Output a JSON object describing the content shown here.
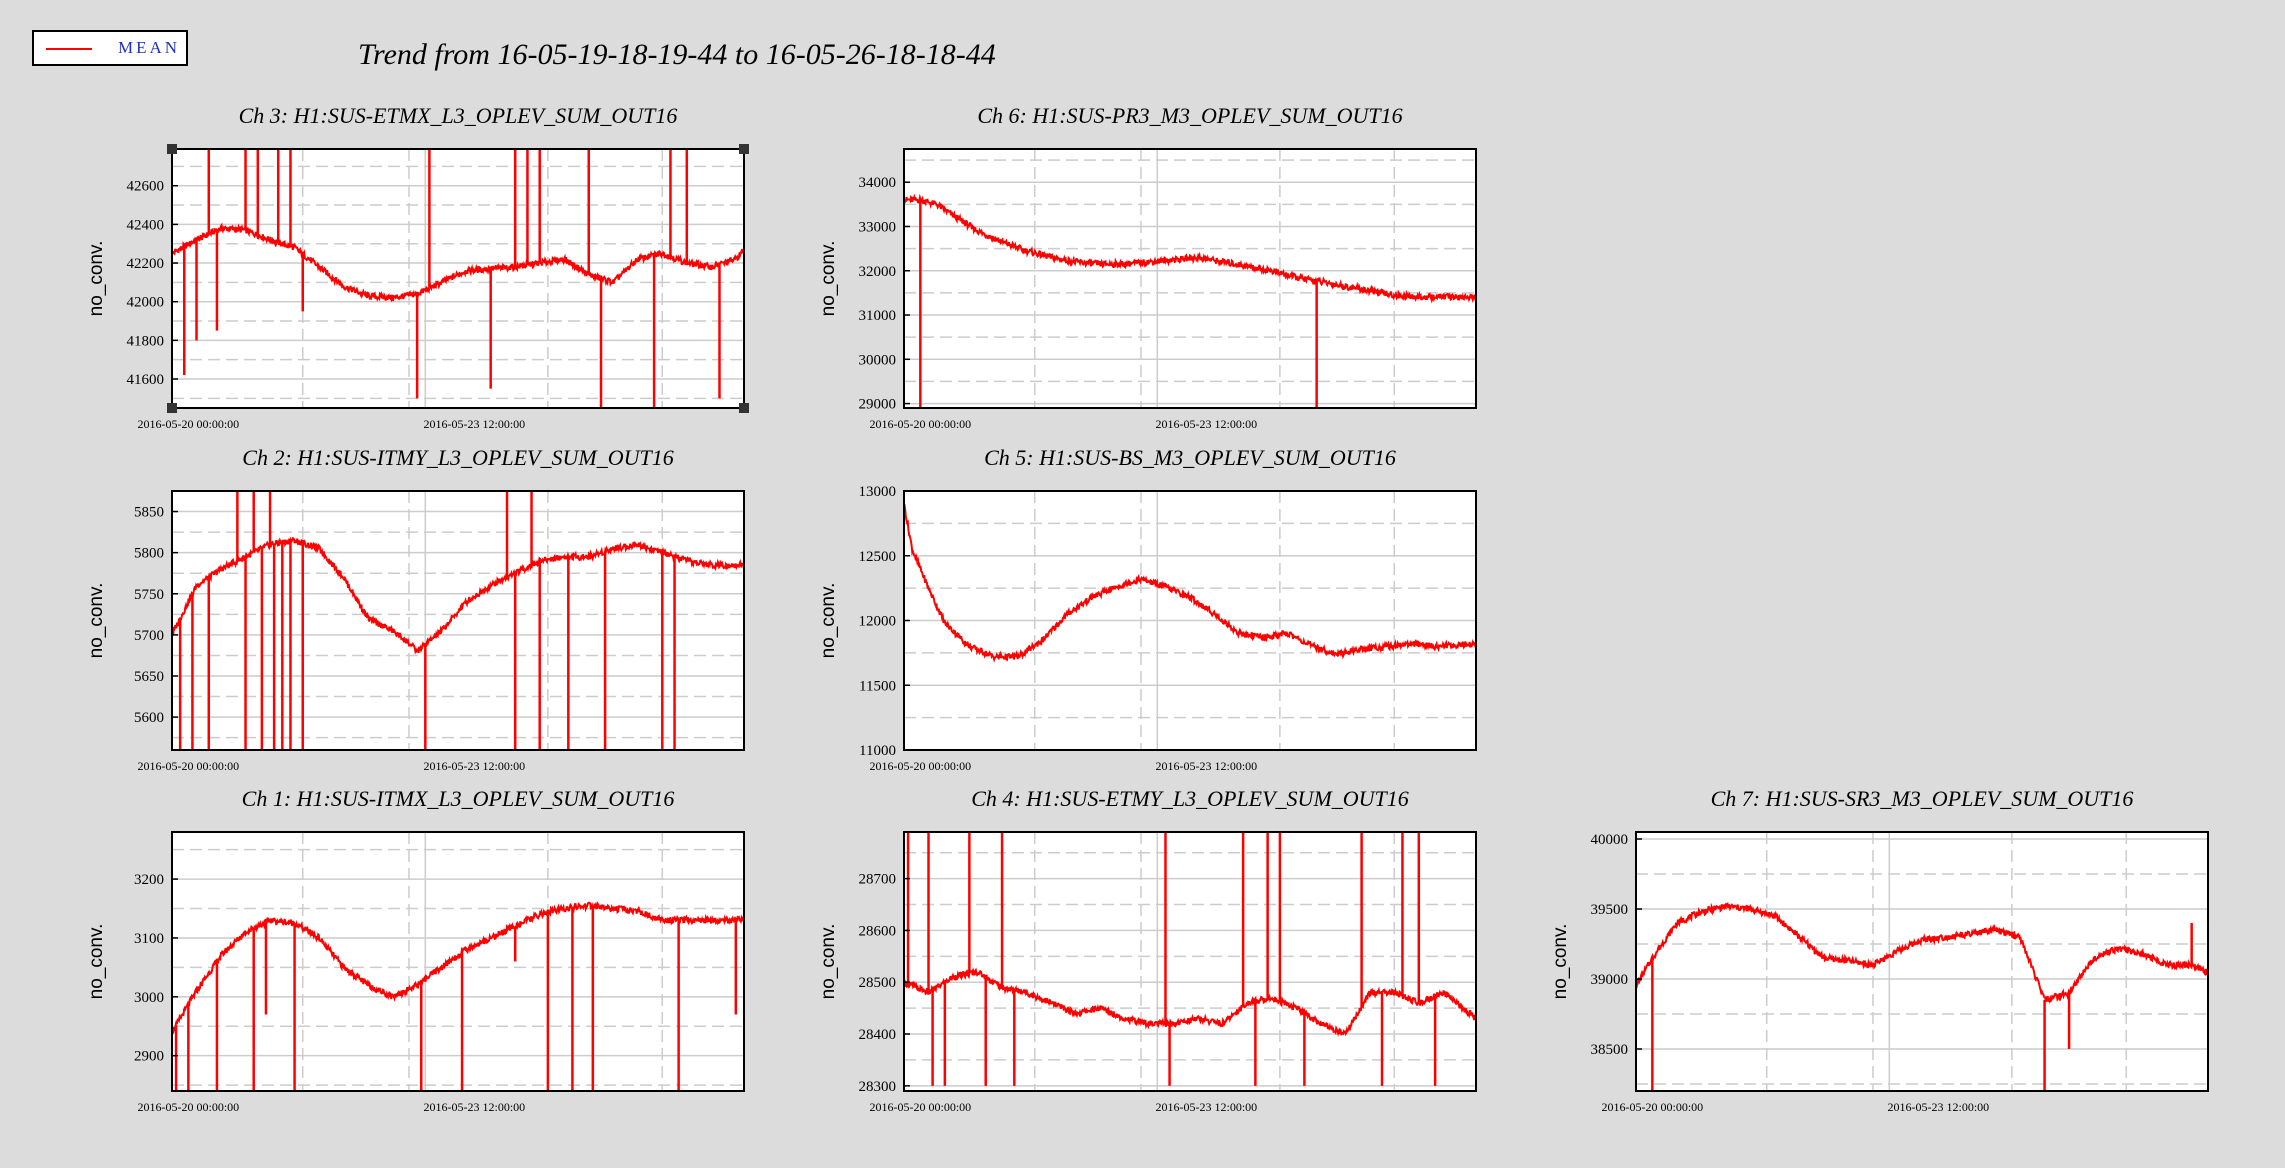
{
  "legend": {
    "label": "MEAN",
    "color": "#ff0000"
  },
  "title": "Trend from 16-05-19-18-19-44 to 16-05-26-18-18-44",
  "chart_data": [
    {
      "type": "line",
      "panel": "r1c1",
      "title": "Ch 3: H1:SUS-ETMX_L3_OPLEV_SUM_OUT16",
      "ylabel": "no_conv.",
      "ylim": [
        41450,
        42790
      ],
      "yticks": [
        41600,
        41800,
        42000,
        42200,
        42400,
        42600
      ],
      "xticks": [
        "2016-05-20 00:00:00",
        "2016-05-23 12:00:00"
      ],
      "series": [
        {
          "color": "#ff0000",
          "x": [
            0,
            0.3,
            0.6,
            0.9,
            1.2,
            1.5,
            1.8,
            2.1,
            2.4,
            2.7,
            3.0,
            3.3,
            3.6,
            3.9,
            4.2,
            4.5,
            4.8,
            5.1,
            5.4,
            5.7,
            6.0,
            6.3,
            6.6,
            6.9,
            7.0
          ],
          "values": [
            42250,
            42320,
            42380,
            42370,
            42320,
            42280,
            42180,
            42080,
            42030,
            42020,
            42040,
            42100,
            42160,
            42170,
            42180,
            42200,
            42220,
            42140,
            42100,
            42220,
            42250,
            42200,
            42180,
            42220,
            42270
          ]
        }
      ],
      "spikes": [
        {
          "x": 0.15,
          "to": 41620
        },
        {
          "x": 0.3,
          "to": 41800
        },
        {
          "x": 0.45,
          "to": 42790
        },
        {
          "x": 0.55,
          "to": 41850
        },
        {
          "x": 0.9,
          "to": 42790
        },
        {
          "x": 1.05,
          "to": 42790
        },
        {
          "x": 1.3,
          "to": 42790
        },
        {
          "x": 1.45,
          "to": 42790
        },
        {
          "x": 1.6,
          "to": 41950
        },
        {
          "x": 3.0,
          "to": 41500
        },
        {
          "x": 3.15,
          "to": 42790
        },
        {
          "x": 3.9,
          "to": 41550
        },
        {
          "x": 4.2,
          "to": 42790
        },
        {
          "x": 4.35,
          "to": 42790
        },
        {
          "x": 4.5,
          "to": 42790
        },
        {
          "x": 5.1,
          "to": 42790
        },
        {
          "x": 5.25,
          "to": 41450
        },
        {
          "x": 5.9,
          "to": 41450
        },
        {
          "x": 6.1,
          "to": 42790
        },
        {
          "x": 6.3,
          "to": 42790
        },
        {
          "x": 6.7,
          "to": 41500
        }
      ]
    },
    {
      "type": "line",
      "panel": "r1c2",
      "title": "Ch 6: H1:SUS-PR3_M3_OPLEV_SUM_OUT16",
      "ylabel": "no_conv.",
      "ylim": [
        28900,
        34750
      ],
      "yticks": [
        29000,
        30000,
        31000,
        32000,
        33000,
        34000
      ],
      "xticks": [
        "2016-05-20 00:00:00",
        "2016-05-23 12:00:00"
      ],
      "series": [
        {
          "color": "#ff0000",
          "x": [
            0,
            0.2,
            0.4,
            0.6,
            0.9,
            1.2,
            1.5,
            1.8,
            2.1,
            2.4,
            2.7,
            3.0,
            3.3,
            3.6,
            3.9,
            4.2,
            4.5,
            4.8,
            5.1,
            5.4,
            5.7,
            6.0,
            6.3,
            6.6,
            6.9,
            7.0
          ],
          "values": [
            33600,
            33600,
            33500,
            33250,
            32900,
            32650,
            32450,
            32300,
            32200,
            32150,
            32150,
            32200,
            32250,
            32300,
            32200,
            32100,
            32000,
            31850,
            31750,
            31650,
            31550,
            31450,
            31400,
            31420,
            31400,
            31400
          ]
        }
      ],
      "spikes": [
        {
          "x": 0.2,
          "to": 28900
        },
        {
          "x": 5.05,
          "to": 28900
        }
      ]
    },
    {
      "type": "line",
      "panel": "r2c1",
      "title": "Ch 2: H1:SUS-ITMY_L3_OPLEV_SUM_OUT16",
      "ylabel": "no_conv.",
      "ylim": [
        5560,
        5875
      ],
      "yticks": [
        5600,
        5650,
        5700,
        5750,
        5800,
        5850
      ],
      "xticks": [
        "2016-05-20 00:00:00",
        "2016-05-23 12:00:00"
      ],
      "series": [
        {
          "color": "#ff0000",
          "x": [
            0,
            0.3,
            0.6,
            0.9,
            1.2,
            1.5,
            1.8,
            2.1,
            2.4,
            2.7,
            2.9,
            3.0,
            3.3,
            3.6,
            3.9,
            4.2,
            4.5,
            4.8,
            5.1,
            5.4,
            5.7,
            6.0,
            6.3,
            6.6,
            7.0
          ],
          "values": [
            5700,
            5760,
            5780,
            5795,
            5810,
            5815,
            5805,
            5770,
            5720,
            5705,
            5690,
            5680,
            5705,
            5740,
            5760,
            5775,
            5790,
            5795,
            5795,
            5805,
            5810,
            5800,
            5790,
            5785,
            5785
          ]
        }
      ],
      "spikes": [
        {
          "x": 0.1,
          "to": 5560
        },
        {
          "x": 0.25,
          "to": 5560
        },
        {
          "x": 0.45,
          "to": 5560
        },
        {
          "x": 0.8,
          "to": 5875
        },
        {
          "x": 0.9,
          "to": 5560
        },
        {
          "x": 1.0,
          "to": 5875
        },
        {
          "x": 1.1,
          "to": 5560
        },
        {
          "x": 1.2,
          "to": 5875
        },
        {
          "x": 1.25,
          "to": 5560
        },
        {
          "x": 1.35,
          "to": 5560
        },
        {
          "x": 1.45,
          "to": 5560
        },
        {
          "x": 1.6,
          "to": 5560
        },
        {
          "x": 3.1,
          "to": 5560
        },
        {
          "x": 4.1,
          "to": 5875
        },
        {
          "x": 4.2,
          "to": 5560
        },
        {
          "x": 4.4,
          "to": 5875
        },
        {
          "x": 4.5,
          "to": 5560
        },
        {
          "x": 4.85,
          "to": 5560
        },
        {
          "x": 5.3,
          "to": 5560
        },
        {
          "x": 6.0,
          "to": 5560
        },
        {
          "x": 6.15,
          "to": 5560
        }
      ]
    },
    {
      "type": "line",
      "panel": "r2c2",
      "title": "Ch 5: H1:SUS-BS_M3_OPLEV_SUM_OUT16",
      "ylabel": "no_conv.",
      "ylim": [
        11000,
        13000
      ],
      "yticks": [
        11000,
        11500,
        12000,
        12500,
        13000
      ],
      "xticks": [
        "2016-05-20 00:00:00",
        "2016-05-23 12:00:00"
      ],
      "series": [
        {
          "color": "#ff0000",
          "x": [
            0,
            0.1,
            0.3,
            0.5,
            0.8,
            1.1,
            1.4,
            1.7,
            2.0,
            2.3,
            2.6,
            2.9,
            3.2,
            3.5,
            3.8,
            4.1,
            4.4,
            4.7,
            5.0,
            5.3,
            5.6,
            5.9,
            6.2,
            6.5,
            7.0
          ],
          "values": [
            12900,
            12550,
            12250,
            11980,
            11800,
            11720,
            11720,
            11850,
            12050,
            12180,
            12260,
            12320,
            12260,
            12180,
            12050,
            11900,
            11870,
            11900,
            11800,
            11740,
            11780,
            11800,
            11820,
            11800,
            11820
          ]
        }
      ],
      "spikes": []
    },
    {
      "type": "line",
      "panel": "r3c1",
      "title": "Ch 1: H1:SUS-ITMX_L3_OPLEV_SUM_OUT16",
      "ylabel": "no_conv.",
      "ylim": [
        2840,
        3280
      ],
      "yticks": [
        2900,
        3000,
        3100,
        3200
      ],
      "xticks": [
        "2016-05-20 00:00:00",
        "2016-05-23 12:00:00"
      ],
      "series": [
        {
          "color": "#ff0000",
          "x": [
            0,
            0.3,
            0.6,
            0.9,
            1.2,
            1.5,
            1.8,
            2.1,
            2.4,
            2.7,
            3.0,
            3.3,
            3.6,
            3.9,
            4.2,
            4.5,
            4.8,
            5.1,
            5.4,
            5.7,
            6.0,
            6.3,
            6.6,
            7.0
          ],
          "values": [
            2940,
            3010,
            3070,
            3110,
            3130,
            3125,
            3100,
            3050,
            3020,
            3000,
            3020,
            3050,
            3080,
            3100,
            3120,
            3140,
            3150,
            3155,
            3150,
            3145,
            3130,
            3130,
            3130,
            3130
          ]
        }
      ],
      "spikes": [
        {
          "x": 0.05,
          "to": 2840
        },
        {
          "x": 0.2,
          "to": 2840
        },
        {
          "x": 0.55,
          "to": 2840
        },
        {
          "x": 1.0,
          "to": 2840
        },
        {
          "x": 1.15,
          "to": 2970
        },
        {
          "x": 1.5,
          "to": 2840
        },
        {
          "x": 3.05,
          "to": 2840
        },
        {
          "x": 3.55,
          "to": 2840
        },
        {
          "x": 4.2,
          "to": 3060
        },
        {
          "x": 4.6,
          "to": 2840
        },
        {
          "x": 4.9,
          "to": 2840
        },
        {
          "x": 5.15,
          "to": 2840
        },
        {
          "x": 6.2,
          "to": 2840
        },
        {
          "x": 6.9,
          "to": 2970
        }
      ]
    },
    {
      "type": "line",
      "panel": "r3c2",
      "title": "Ch 4: H1:SUS-ETMY_L3_OPLEV_SUM_OUT16",
      "ylabel": "no_conv.",
      "ylim": [
        28290,
        28790
      ],
      "yticks": [
        28300,
        28400,
        28500,
        28600,
        28700
      ],
      "xticks": [
        "2016-05-20 00:00:00",
        "2016-05-23 12:00:00"
      ],
      "series": [
        {
          "color": "#ff0000",
          "x": [
            0,
            0.3,
            0.6,
            0.9,
            1.2,
            1.5,
            1.8,
            2.1,
            2.4,
            2.7,
            3.0,
            3.3,
            3.6,
            3.9,
            4.2,
            4.5,
            4.8,
            5.1,
            5.4,
            5.7,
            6.0,
            6.3,
            6.6,
            7.0
          ],
          "values": [
            28500,
            28480,
            28510,
            28520,
            28490,
            28480,
            28460,
            28440,
            28450,
            28430,
            28420,
            28420,
            28430,
            28420,
            28460,
            28470,
            28450,
            28420,
            28400,
            28480,
            28480,
            28460,
            28480,
            28430
          ]
        }
      ],
      "spikes": [
        {
          "x": 0.05,
          "to": 28790
        },
        {
          "x": 0.3,
          "to": 28790
        },
        {
          "x": 0.35,
          "to": 28300
        },
        {
          "x": 0.5,
          "to": 28300
        },
        {
          "x": 0.8,
          "to": 28790
        },
        {
          "x": 1.0,
          "to": 28300
        },
        {
          "x": 1.2,
          "to": 28790
        },
        {
          "x": 1.35,
          "to": 28300
        },
        {
          "x": 3.2,
          "to": 28790
        },
        {
          "x": 3.25,
          "to": 28300
        },
        {
          "x": 4.15,
          "to": 28790
        },
        {
          "x": 4.3,
          "to": 28300
        },
        {
          "x": 4.45,
          "to": 28790
        },
        {
          "x": 4.6,
          "to": 28790
        },
        {
          "x": 4.9,
          "to": 28300
        },
        {
          "x": 5.6,
          "to": 28790
        },
        {
          "x": 5.85,
          "to": 28300
        },
        {
          "x": 6.1,
          "to": 28790
        },
        {
          "x": 6.3,
          "to": 28790
        },
        {
          "x": 6.5,
          "to": 28300
        }
      ]
    },
    {
      "type": "line",
      "panel": "r3c3",
      "title": "Ch 7: H1:SUS-SR3_M3_OPLEV_SUM_OUT16",
      "ylabel": "no_conv.",
      "ylim": [
        38200,
        40050
      ],
      "yticks": [
        38500,
        39000,
        39500,
        40000
      ],
      "xticks": [
        "2016-05-20 00:00:00",
        "2016-05-23 12:00:00"
      ],
      "series": [
        {
          "color": "#ff0000",
          "x": [
            0,
            0.2,
            0.5,
            0.8,
            1.1,
            1.4,
            1.7,
            2.0,
            2.3,
            2.6,
            2.9,
            3.2,
            3.5,
            3.8,
            4.1,
            4.4,
            4.7,
            5.0,
            5.3,
            5.6,
            5.9,
            6.2,
            6.5,
            6.8,
            7.0
          ],
          "values": [
            38950,
            39150,
            39400,
            39480,
            39520,
            39500,
            39450,
            39300,
            39150,
            39130,
            39100,
            39200,
            39280,
            39300,
            39320,
            39350,
            39300,
            38850,
            38900,
            39150,
            39220,
            39180,
            39100,
            39100,
            39050
          ]
        }
      ],
      "spikes": [
        {
          "x": 0.2,
          "to": 38200
        },
        {
          "x": 5.0,
          "to": 38200
        },
        {
          "x": 5.3,
          "to": 38500
        },
        {
          "x": 6.8,
          "to": 39400
        }
      ]
    }
  ]
}
